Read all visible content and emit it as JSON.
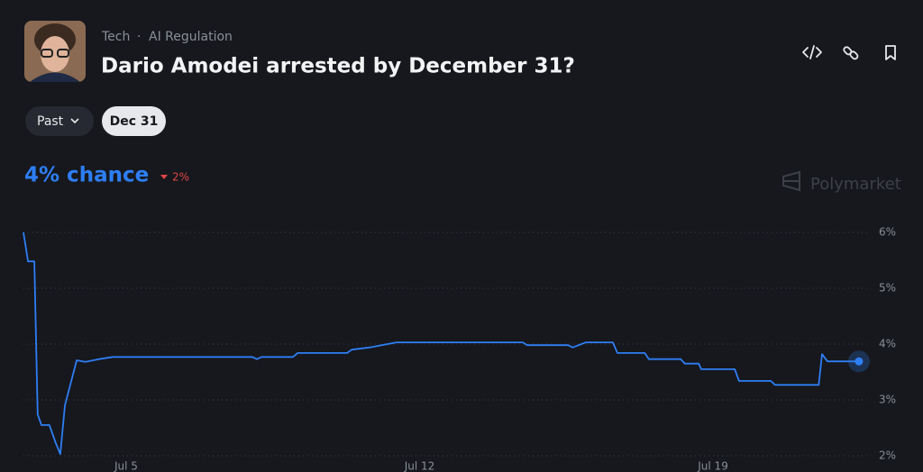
{
  "header": {
    "category": "Tech",
    "separator": "·",
    "tag": "AI Regulation",
    "title": "Dario Amodei arrested by December 31?"
  },
  "controls": {
    "range": "Past",
    "date": "Dec 31"
  },
  "summary": {
    "chance": "4% chance",
    "change": "2%"
  },
  "brand": "Polymarket",
  "chart_data": {
    "type": "line",
    "color": "#2e7ef5",
    "x": [
      2.55,
      2.66,
      2.81,
      2.89,
      2.98,
      3.17,
      3.32,
      3.43,
      3.54,
      3.71,
      3.82,
      4.03,
      4.35,
      4.68,
      8.01,
      8.12,
      8.23,
      8.98,
      9.09,
      10.27,
      10.38,
      10.81,
      11.45,
      14.46,
      14.57,
      15.54,
      15.65,
      15.97,
      16.61,
      16.72,
      17.37,
      17.47,
      18.23,
      18.33,
      18.66,
      18.72,
      19.52,
      19.62,
      20.38,
      20.48,
      21.52,
      21.6,
      21.73,
      22.48
    ],
    "values": [
      6.0,
      5.48,
      5.48,
      2.74,
      2.55,
      2.55,
      2.23,
      2.03,
      2.9,
      3.39,
      3.71,
      3.68,
      3.73,
      3.77,
      3.77,
      3.73,
      3.77,
      3.77,
      3.84,
      3.84,
      3.9,
      3.94,
      4.03,
      4.03,
      3.98,
      3.98,
      3.94,
      4.03,
      4.03,
      3.84,
      3.84,
      3.73,
      3.73,
      3.65,
      3.65,
      3.55,
      3.55,
      3.34,
      3.34,
      3.27,
      3.27,
      3.82,
      3.69,
      3.69
    ],
    "xlim": [
      2.55,
      22.74
    ],
    "xticks": [
      {
        "value": 5,
        "label": "Jul 5"
      },
      {
        "value": 12,
        "label": "Jul 12"
      },
      {
        "value": 19,
        "label": "Jul 19"
      }
    ],
    "ylim": [
      2,
      6
    ],
    "yticks": [
      {
        "value": 2,
        "label": "2%"
      },
      {
        "value": 3,
        "label": "3%"
      },
      {
        "value": 4,
        "label": "4%"
      },
      {
        "value": 5,
        "label": "5%"
      },
      {
        "value": 6,
        "label": "6%"
      }
    ],
    "grid": true
  }
}
